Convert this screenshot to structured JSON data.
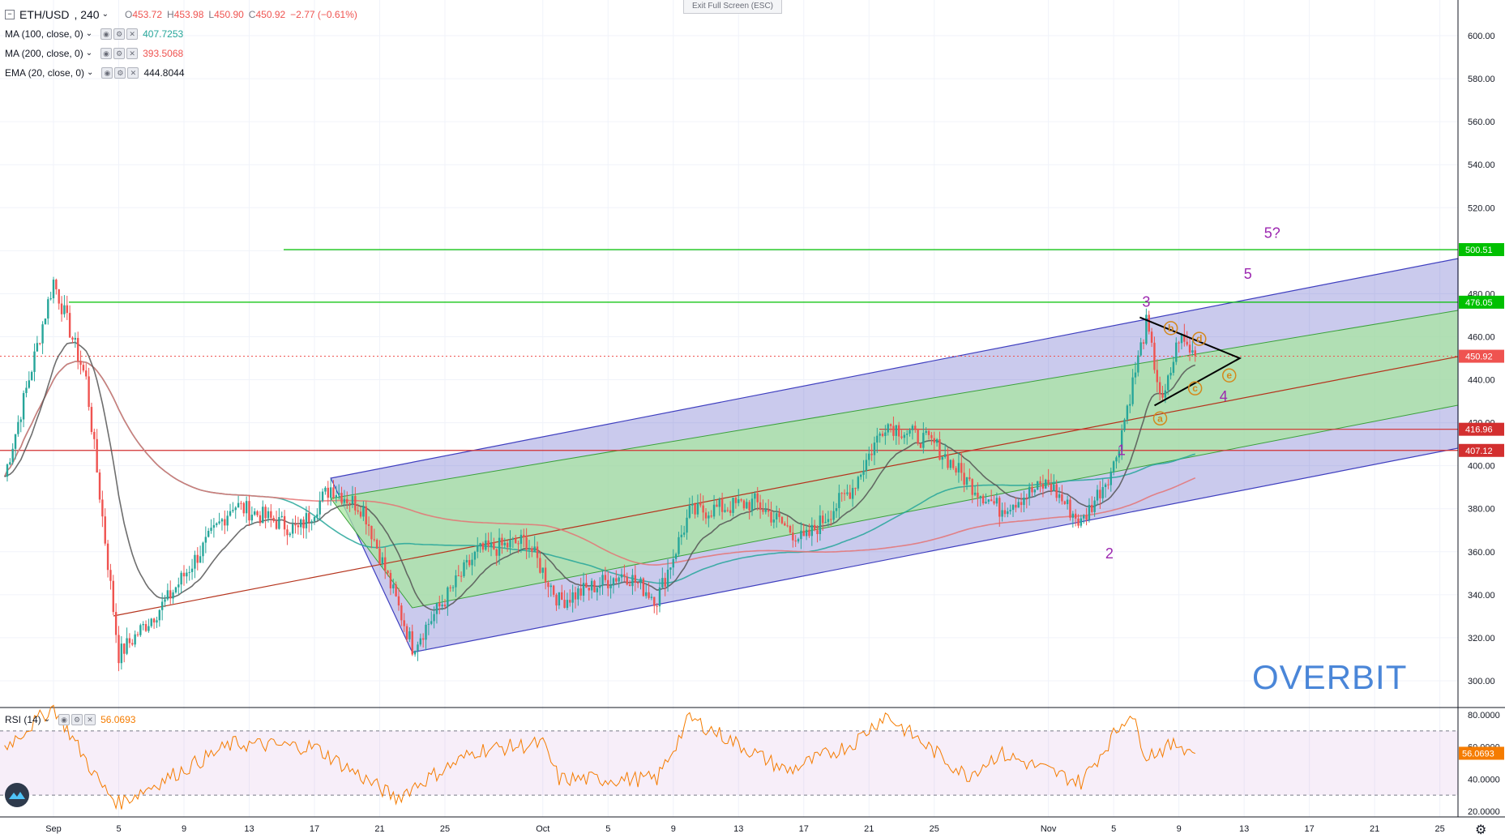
{
  "header": {
    "symbol": "ETH/USD",
    "interval": "240",
    "ohlc": {
      "o": "453.72",
      "h": "453.98",
      "l": "450.90",
      "c": "450.92",
      "change": "−2.77 (−0.61%)"
    },
    "exit_fullscreen": "Exit Full Screen (ESC)"
  },
  "indicators": [
    {
      "label": "MA (100, close, 0)",
      "value": "407.7253",
      "color": "#26a69a"
    },
    {
      "label": "MA (200, close, 0)",
      "value": "393.5068",
      "color": "#ef5350"
    },
    {
      "label": "EMA (20, close, 0)",
      "value": "444.8044",
      "color": "#131722"
    }
  ],
  "rsi": {
    "label": "RSI (14)",
    "value": "56.0693",
    "color": "#f57c00",
    "upper": 70,
    "lower": 30
  },
  "watermark": "OVERBIT",
  "colors": {
    "up": "#26a69a",
    "down": "#ef5350",
    "channel_outer": "#3f3fbf",
    "channel_inner": "#3aa13a",
    "hline_green": "#00c000",
    "hline_red": "#d32f2f",
    "wave": "#9c27b0",
    "abcde": "#d4881c"
  },
  "chart_data": {
    "type": "candlestick",
    "title": "ETH/USD, 240",
    "price_axis": {
      "min": 290,
      "max": 610,
      "ticks": [
        300,
        320,
        340,
        360,
        380,
        400,
        420,
        440,
        460,
        480,
        500,
        520,
        540,
        560,
        580,
        600
      ]
    },
    "x_axis": {
      "ticks": [
        "Sep",
        "5",
        "9",
        "13",
        "17",
        "21",
        "25",
        "Oct",
        "5",
        "9",
        "13",
        "17",
        "21",
        "25",
        "Nov",
        "5",
        "9",
        "13",
        "17",
        "21",
        "25"
      ]
    },
    "price_labels": [
      {
        "value": 500.51,
        "text": "500.51",
        "color": "#00c000"
      },
      {
        "value": 476.05,
        "text": "476.05",
        "color": "#00c000"
      },
      {
        "value": 450.92,
        "text": "450.92",
        "color": "#ef5350"
      },
      {
        "value": 416.96,
        "text": "416.96",
        "color": "#d32f2f"
      },
      {
        "value": 407.12,
        "text": "407.12",
        "color": "#d32f2f"
      }
    ],
    "wave_labels": [
      {
        "text": "1",
        "price": 405
      },
      {
        "text": "2",
        "price": 360
      },
      {
        "text": "3",
        "price": 471
      },
      {
        "text": "4",
        "price": 434
      },
      {
        "text": "5",
        "price": 484
      },
      {
        "text": "5?",
        "price": 503
      }
    ],
    "triangle_labels": [
      "a",
      "b",
      "c",
      "d",
      "e"
    ],
    "anchor_prices": [
      {
        "date": "Aug 29",
        "price": 395
      },
      {
        "date": "Sep 1",
        "price": 486
      },
      {
        "date": "Sep 3",
        "price": 440
      },
      {
        "date": "Sep 5",
        "price": 312
      },
      {
        "date": "Sep 8",
        "price": 338
      },
      {
        "date": "Sep 12",
        "price": 382
      },
      {
        "date": "Sep 16",
        "price": 370
      },
      {
        "date": "Sep 18",
        "price": 390
      },
      {
        "date": "Sep 20",
        "price": 380
      },
      {
        "date": "Sep 23",
        "price": 316
      },
      {
        "date": "Sep 27",
        "price": 360
      },
      {
        "date": "Sep 30",
        "price": 365
      },
      {
        "date": "Oct 2",
        "price": 337
      },
      {
        "date": "Oct 6",
        "price": 350
      },
      {
        "date": "Oct 8",
        "price": 338
      },
      {
        "date": "Oct 10",
        "price": 378
      },
      {
        "date": "Oct 14",
        "price": 383
      },
      {
        "date": "Oct 17",
        "price": 365
      },
      {
        "date": "Oct 20",
        "price": 390
      },
      {
        "date": "Oct 22",
        "price": 420
      },
      {
        "date": "Oct 25",
        "price": 410
      },
      {
        "date": "Oct 27",
        "price": 393
      },
      {
        "date": "Oct 29",
        "price": 380
      },
      {
        "date": "Nov 1",
        "price": 392
      },
      {
        "date": "Nov 3",
        "price": 373
      },
      {
        "date": "Nov 5",
        "price": 400
      },
      {
        "date": "Nov 7",
        "price": 466
      },
      {
        "date": "Nov 8",
        "price": 428
      },
      {
        "date": "Nov 9",
        "price": 460
      },
      {
        "date": "Nov 10",
        "price": 451
      }
    ],
    "rsi_axis": {
      "ticks": [
        20,
        40,
        60,
        80
      ]
    },
    "rsi_anchors": [
      {
        "date": "Aug 29",
        "value": 60
      },
      {
        "date": "Sep 1",
        "value": 85
      },
      {
        "date": "Sep 4",
        "value": 35
      },
      {
        "date": "Sep 5",
        "value": 25
      },
      {
        "date": "Sep 12",
        "value": 62
      },
      {
        "date": "Sep 17",
        "value": 60
      },
      {
        "date": "Sep 22",
        "value": 28
      },
      {
        "date": "Sep 23",
        "value": 35
      },
      {
        "date": "Sep 27",
        "value": 58
      },
      {
        "date": "Oct 1",
        "value": 62
      },
      {
        "date": "Oct 2",
        "value": 40
      },
      {
        "date": "Oct 8",
        "value": 40
      },
      {
        "date": "Oct 10",
        "value": 78
      },
      {
        "date": "Oct 16",
        "value": 45
      },
      {
        "date": "Oct 20",
        "value": 62
      },
      {
        "date": "Oct 22",
        "value": 80
      },
      {
        "date": "Oct 27",
        "value": 42
      },
      {
        "date": "Oct 29",
        "value": 56
      },
      {
        "date": "Nov 3",
        "value": 38
      },
      {
        "date": "Nov 6",
        "value": 82
      },
      {
        "date": "Nov 7",
        "value": 55
      },
      {
        "date": "Nov 9",
        "value": 62
      },
      {
        "date": "Nov 10",
        "value": 56
      }
    ]
  }
}
